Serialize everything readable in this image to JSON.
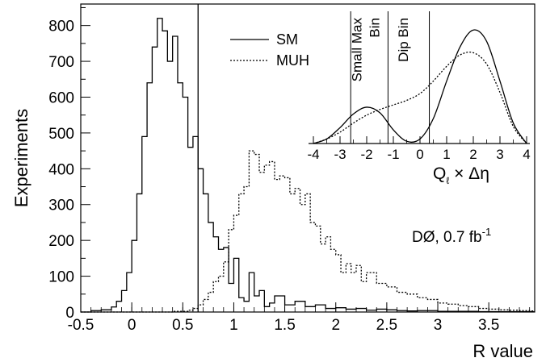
{
  "chart_data": {
    "type": "line",
    "main": {
      "xlabel": "R value",
      "ylabel": "Experiments",
      "xlim": [
        -0.5,
        3.95
      ],
      "ylim": [
        0,
        860
      ],
      "xticks": [
        "-0.5",
        "0",
        "0.5",
        "1",
        "1.5",
        "2",
        "2.5",
        "3",
        "3.5"
      ],
      "xtick_values": [
        -0.5,
        0,
        0.5,
        1,
        1.5,
        2,
        2.5,
        3,
        3.5
      ],
      "yticks": [
        "0",
        "100",
        "200",
        "300",
        "400",
        "500",
        "600",
        "700",
        "800"
      ],
      "ytick_values": [
        0,
        100,
        200,
        300,
        400,
        500,
        600,
        700,
        800
      ],
      "cut_line_x": 0.65,
      "annotation": "DØ, 0.7 fb",
      "annotation_sup": "-1",
      "series": [
        {
          "name": "SM",
          "style": "solid",
          "x": [
            -0.5,
            -0.4,
            -0.3,
            -0.2,
            -0.15,
            -0.1,
            -0.05,
            0.0,
            0.05,
            0.1,
            0.15,
            0.2,
            0.25,
            0.3,
            0.35,
            0.4,
            0.45,
            0.5,
            0.55,
            0.6,
            0.65,
            0.7,
            0.75,
            0.8,
            0.85,
            0.9,
            0.95,
            1.0,
            1.05,
            1.1,
            1.15,
            1.2,
            1.25,
            1.3,
            1.35,
            1.4,
            1.5,
            1.6,
            1.7,
            1.8,
            1.9,
            2.0,
            2.1,
            2.2,
            2.3,
            2.4,
            2.5,
            2.6,
            2.7,
            2.8,
            3.0,
            3.2,
            3.4,
            3.6,
            3.8
          ],
          "y": [
            0,
            4,
            6,
            14,
            30,
            60,
            110,
            200,
            330,
            490,
            640,
            740,
            820,
            785,
            700,
            770,
            640,
            600,
            460,
            490,
            400,
            330,
            250,
            210,
            175,
            180,
            80,
            150,
            40,
            30,
            110,
            45,
            60,
            15,
            25,
            45,
            20,
            30,
            15,
            20,
            10,
            12,
            8,
            10,
            5,
            8,
            6,
            4,
            3,
            4,
            2,
            2,
            1,
            1,
            1
          ]
        },
        {
          "name": "MUH",
          "style": "dotted",
          "x": [
            -0.5,
            0.0,
            0.4,
            0.55,
            0.6,
            0.65,
            0.7,
            0.75,
            0.8,
            0.85,
            0.9,
            0.95,
            1.0,
            1.05,
            1.1,
            1.15,
            1.2,
            1.25,
            1.3,
            1.35,
            1.4,
            1.45,
            1.5,
            1.55,
            1.6,
            1.65,
            1.7,
            1.75,
            1.8,
            1.85,
            1.9,
            1.95,
            2.0,
            2.05,
            2.1,
            2.15,
            2.2,
            2.25,
            2.3,
            2.4,
            2.5,
            2.6,
            2.7,
            2.8,
            2.9,
            3.0,
            3.1,
            3.2,
            3.3,
            3.4,
            3.5,
            3.6,
            3.7,
            3.8,
            3.9
          ],
          "y": [
            0,
            0,
            2,
            5,
            10,
            20,
            35,
            55,
            85,
            100,
            140,
            230,
            270,
            330,
            350,
            450,
            440,
            390,
            410,
            420,
            370,
            380,
            375,
            330,
            345,
            300,
            330,
            250,
            240,
            190,
            210,
            175,
            160,
            110,
            135,
            110,
            130,
            85,
            110,
            80,
            70,
            55,
            50,
            40,
            35,
            25,
            22,
            18,
            15,
            10,
            8,
            6,
            5,
            4,
            3
          ]
        }
      ]
    },
    "inset": {
      "xlabel": "Q",
      "xlabel_sub": "ℓ",
      "xlabel_rest": " × Δη",
      "xlim": [
        -4,
        4
      ],
      "xticks": [
        "-4",
        "-3",
        "-2",
        "-1",
        "0",
        "1",
        "2",
        "3",
        "4"
      ],
      "xtick_values": [
        -4,
        -3,
        -2,
        -1,
        0,
        1,
        2,
        3,
        4
      ],
      "bin_lines": [
        -2.6,
        -1.2,
        0.35
      ],
      "bin_labels": [
        {
          "lines": [
            "Small Max",
            "Bin"
          ],
          "x": -1.9
        },
        {
          "lines": [
            "Dip Bin"
          ],
          "x": -0.45
        }
      ],
      "series": [
        {
          "name": "SM",
          "style": "solid",
          "x": [
            -4,
            -3.5,
            -3,
            -2.5,
            -2,
            -1.5,
            -1,
            -0.5,
            0,
            0.5,
            1,
            1.5,
            2,
            2.5,
            3,
            3.5,
            4
          ],
          "y": [
            0.0,
            0.04,
            0.14,
            0.26,
            0.32,
            0.27,
            0.12,
            0.02,
            0.04,
            0.22,
            0.55,
            0.85,
            1.0,
            0.9,
            0.55,
            0.18,
            0.0
          ]
        },
        {
          "name": "MUH",
          "style": "dotted",
          "x": [
            -4,
            -3.5,
            -3,
            -2.5,
            -2,
            -1.5,
            -1,
            -0.5,
            0,
            0.5,
            1,
            1.5,
            2,
            2.5,
            3,
            3.5,
            4
          ],
          "y": [
            0.0,
            0.04,
            0.1,
            0.18,
            0.25,
            0.3,
            0.34,
            0.38,
            0.44,
            0.55,
            0.68,
            0.78,
            0.8,
            0.7,
            0.45,
            0.15,
            0.0
          ]
        }
      ]
    }
  }
}
